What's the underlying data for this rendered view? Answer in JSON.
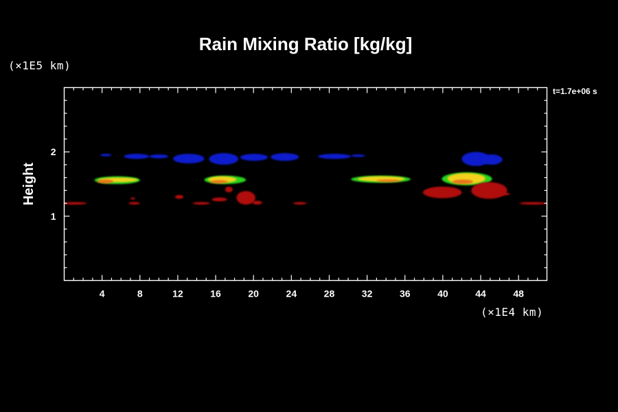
{
  "chart_data": {
    "type": "heatmap",
    "title": "Rain Mixing Ratio [kg/kg]",
    "xlabel": "",
    "ylabel": "Height",
    "x_unit": "(×1E4 km)",
    "y_unit": "(×1E5 km)",
    "time_label": "t=1.7e+06 s",
    "xlim": [
      0,
      51
    ],
    "ylim": [
      0,
      3
    ],
    "x_ticks": [
      4,
      8,
      12,
      16,
      20,
      24,
      28,
      32,
      36,
      40,
      44,
      48
    ],
    "y_ticks": [
      1,
      2
    ],
    "grid": false,
    "colors": {
      "blue": "#0a1ecc",
      "red": "#b0100c",
      "yellow": "#f2d21e",
      "orange": "#e8761a",
      "green": "#2bd41c"
    },
    "features": [
      {
        "band": "blue",
        "x": [
          3.8,
          5.0
        ],
        "y": [
          1.93,
          1.97
        ]
      },
      {
        "band": "blue",
        "x": [
          6.3,
          9.0
        ],
        "y": [
          1.89,
          1.97
        ]
      },
      {
        "band": "blue",
        "x": [
          9.0,
          11.0
        ],
        "y": [
          1.9,
          1.96
        ]
      },
      {
        "band": "blue",
        "x": [
          11.5,
          14.8
        ],
        "y": [
          1.82,
          1.97
        ]
      },
      {
        "band": "blue",
        "x": [
          15.3,
          18.4
        ],
        "y": [
          1.8,
          1.98
        ]
      },
      {
        "band": "blue",
        "x": [
          18.6,
          21.5
        ],
        "y": [
          1.86,
          1.97
        ]
      },
      {
        "band": "blue",
        "x": [
          21.8,
          24.8
        ],
        "y": [
          1.86,
          1.98
        ]
      },
      {
        "band": "blue",
        "x": [
          26.8,
          30.3
        ],
        "y": [
          1.89,
          1.97
        ]
      },
      {
        "band": "blue",
        "x": [
          30.3,
          31.8
        ],
        "y": [
          1.92,
          1.96
        ]
      },
      {
        "band": "blue",
        "x": [
          42.0,
          45.0
        ],
        "y": [
          1.78,
          2.0
        ]
      },
      {
        "band": "blue",
        "x": [
          44.0,
          46.3
        ],
        "y": [
          1.8,
          1.96
        ]
      },
      {
        "band": "green",
        "x": [
          3.2,
          8.0
        ],
        "y": [
          1.5,
          1.62
        ]
      },
      {
        "band": "yellow",
        "x": [
          3.6,
          7.8
        ],
        "y": [
          1.53,
          1.6
        ]
      },
      {
        "band": "orange",
        "x": [
          3.5,
          5.2
        ],
        "y": [
          1.51,
          1.57
        ]
      },
      {
        "band": "green",
        "x": [
          14.8,
          19.2
        ],
        "y": [
          1.5,
          1.63
        ]
      },
      {
        "band": "yellow",
        "x": [
          15.2,
          18.2
        ],
        "y": [
          1.52,
          1.62
        ]
      },
      {
        "band": "orange",
        "x": [
          15.4,
          17.3
        ],
        "y": [
          1.51,
          1.56
        ]
      },
      {
        "band": "green",
        "x": [
          30.3,
          36.6
        ],
        "y": [
          1.52,
          1.63
        ]
      },
      {
        "band": "yellow",
        "x": [
          31.0,
          36.0
        ],
        "y": [
          1.54,
          1.62
        ]
      },
      {
        "band": "orange",
        "x": [
          33.0,
          35.5
        ],
        "y": [
          1.53,
          1.57
        ]
      },
      {
        "band": "green",
        "x": [
          39.9,
          45.2
        ],
        "y": [
          1.48,
          1.68
        ]
      },
      {
        "band": "yellow",
        "x": [
          40.5,
          44.5
        ],
        "y": [
          1.5,
          1.67
        ]
      },
      {
        "band": "orange",
        "x": [
          41.0,
          43.2
        ],
        "y": [
          1.5,
          1.57
        ]
      },
      {
        "band": "red",
        "x": [
          -0.3,
          2.4
        ],
        "y": [
          1.18,
          1.22
        ]
      },
      {
        "band": "red",
        "x": [
          6.8,
          8.0
        ],
        "y": [
          1.18,
          1.22
        ]
      },
      {
        "band": "red",
        "x": [
          7.0,
          7.5
        ],
        "y": [
          1.26,
          1.29
        ]
      },
      {
        "band": "red",
        "x": [
          11.7,
          12.6
        ],
        "y": [
          1.27,
          1.33
        ]
      },
      {
        "band": "red",
        "x": [
          13.6,
          15.4
        ],
        "y": [
          1.18,
          1.22
        ]
      },
      {
        "band": "red",
        "x": [
          15.6,
          17.2
        ],
        "y": [
          1.23,
          1.29
        ]
      },
      {
        "band": "red",
        "x": [
          17.0,
          17.8
        ],
        "y": [
          1.37,
          1.46
        ]
      },
      {
        "band": "red",
        "x": [
          18.2,
          20.2
        ],
        "y": [
          1.18,
          1.39
        ]
      },
      {
        "band": "red",
        "x": [
          19.9,
          20.9
        ],
        "y": [
          1.18,
          1.24
        ]
      },
      {
        "band": "red",
        "x": [
          24.2,
          25.6
        ],
        "y": [
          1.18,
          1.22
        ]
      },
      {
        "band": "red",
        "x": [
          37.9,
          42.0
        ],
        "y": [
          1.28,
          1.46
        ]
      },
      {
        "band": "red",
        "x": [
          43.0,
          46.8
        ],
        "y": [
          1.27,
          1.53
        ]
      },
      {
        "band": "red",
        "x": [
          45.3,
          47.1
        ],
        "y": [
          1.32,
          1.37
        ]
      },
      {
        "band": "red",
        "x": [
          48.1,
          51.0
        ],
        "y": [
          1.18,
          1.22
        ]
      }
    ]
  }
}
